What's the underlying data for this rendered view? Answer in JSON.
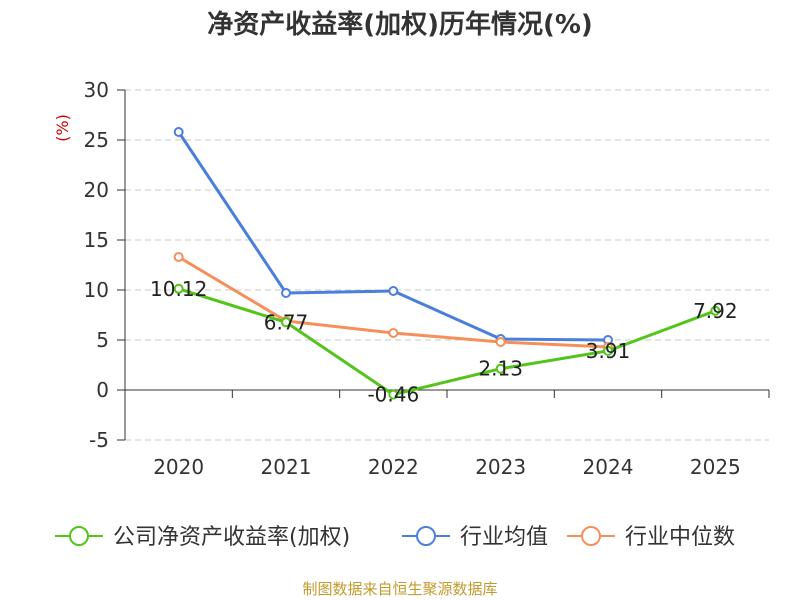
{
  "chart_data": {
    "type": "line",
    "title": "净资产收益率(加权)历年情况(%)",
    "ylabel": "(%)",
    "categories": [
      "2020",
      "2021",
      "2022",
      "2023",
      "2024",
      "2025"
    ],
    "ylim": [
      -5,
      30
    ],
    "yticks": [
      30,
      25,
      20,
      15,
      10,
      5,
      0,
      -5
    ],
    "grid": true,
    "legend_position": "bottom",
    "series": [
      {
        "name": "公司净资产收益率(加权)",
        "color": "#52c41a",
        "values": [
          10.12,
          6.77,
          -0.46,
          2.13,
          3.91,
          7.92
        ],
        "labels": [
          "10.12",
          "6.77",
          "-0.46",
          "2.13",
          "3.91",
          "7.92"
        ]
      },
      {
        "name": "行业均值",
        "color": "#4a7fdc",
        "values": [
          25.8,
          9.7,
          9.9,
          5.1,
          5.0,
          null
        ]
      },
      {
        "name": "行业中位数",
        "color": "#f5905a",
        "values": [
          13.3,
          6.9,
          5.7,
          4.8,
          4.3,
          null
        ]
      }
    ]
  },
  "source": "制图数据来自恒生聚源数据库"
}
